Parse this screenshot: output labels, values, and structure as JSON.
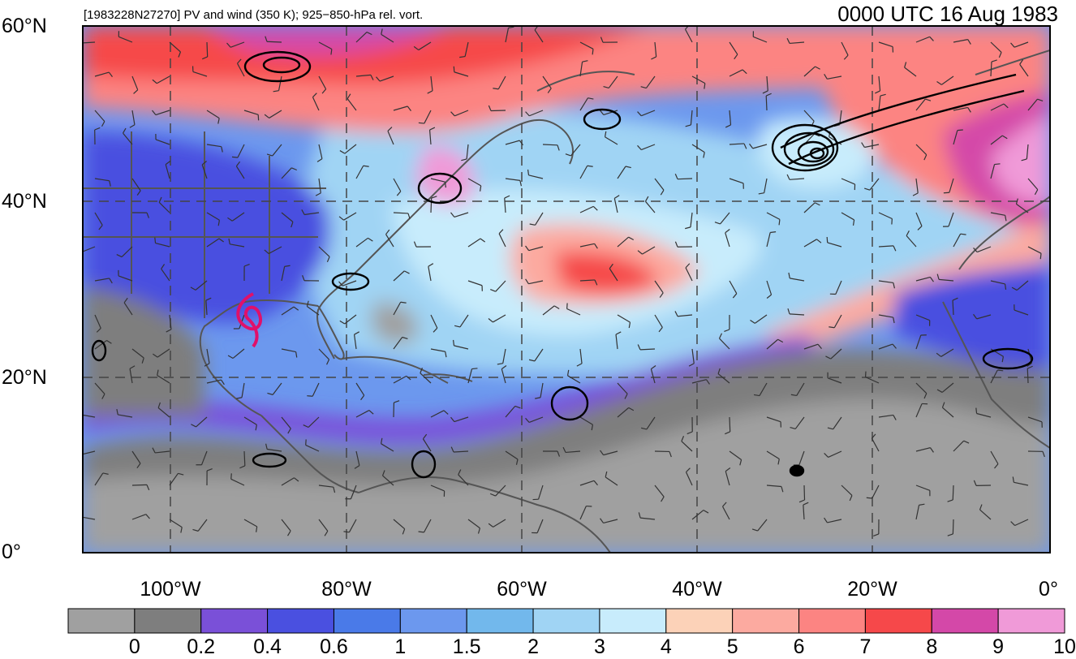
{
  "header": {
    "left_title": "[1983228N27270] PV and wind (350 K); 925−850-hPa rel. vort.",
    "right_title": "0000 UTC 16 Aug 1983"
  },
  "axes": {
    "lat_labels": [
      "60°N",
      "40°N",
      "20°N",
      "0°"
    ],
    "lon_labels": [
      "100°W",
      "80°W",
      "60°W",
      "40°W",
      "20°W",
      "0°"
    ]
  },
  "colorbar": {
    "labels": [
      "0",
      "0.2",
      "0.4",
      "0.6",
      "1",
      "1.5",
      "2",
      "3",
      "4",
      "5",
      "6",
      "7",
      "8",
      "9",
      "10"
    ],
    "colors": [
      "#a0a0a0",
      "#7e7e7e",
      "#7a50d8",
      "#4a50e0",
      "#4a7ae8",
      "#6c98ee",
      "#72b8ec",
      "#a0d4f4",
      "#c8ecfc",
      "#fcd2b8",
      "#fcaaa0",
      "#fc8482",
      "#f6484a",
      "#d448a8",
      "#f09ad8"
    ]
  },
  "colors": {
    "storm_track": "#e0106a",
    "contours": "#000000",
    "coastline": "#555555"
  }
}
